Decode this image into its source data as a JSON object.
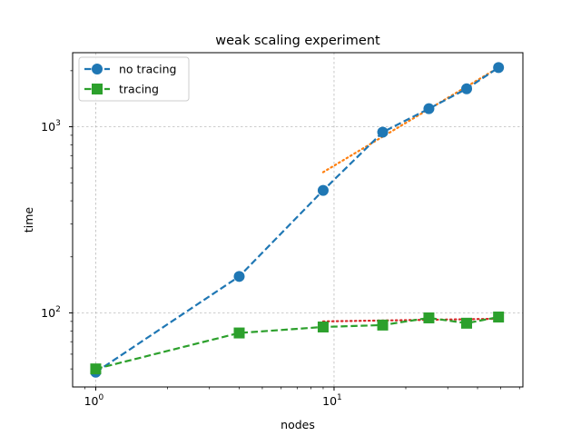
{
  "chart_data": {
    "type": "line",
    "title": "weak scaling experiment",
    "xlabel": "nodes",
    "ylabel": "time",
    "xscale": "log",
    "yscale": "log",
    "xlim": [
      0.8,
      62
    ],
    "ylim": [
      40,
      2500
    ],
    "grid": true,
    "legend_position": "top-left",
    "x_ticks": [
      {
        "base": "10",
        "exp": "0",
        "value": 1
      },
      {
        "base": "10",
        "exp": "1",
        "value": 10
      }
    ],
    "y_ticks": [
      {
        "base": "10",
        "exp": "2",
        "value": 100
      },
      {
        "base": "10",
        "exp": "3",
        "value": 1000
      }
    ],
    "series": [
      {
        "name": "no tracing",
        "color": "#1f77b4",
        "marker": "circle",
        "linestyle": "dashed",
        "x": [
          1,
          4,
          9,
          16,
          25,
          36,
          49
        ],
        "y": [
          48,
          157,
          455,
          935,
          1250,
          1600,
          2080
        ]
      },
      {
        "name": "tracing",
        "color": "#2ca02c",
        "marker": "square",
        "linestyle": "dashed",
        "x": [
          1,
          4,
          9,
          16,
          25,
          36,
          49
        ],
        "y": [
          50,
          78,
          84,
          86,
          94,
          88,
          95
        ]
      }
    ],
    "fit_lines": [
      {
        "color": "#ff7f0e",
        "linestyle": "dotted",
        "x": [
          9,
          49
        ],
        "y": [
          570,
          2080
        ]
      },
      {
        "color": "#d62728",
        "linestyle": "dotted",
        "x": [
          9,
          49
        ],
        "y": [
          90,
          93
        ]
      }
    ]
  }
}
